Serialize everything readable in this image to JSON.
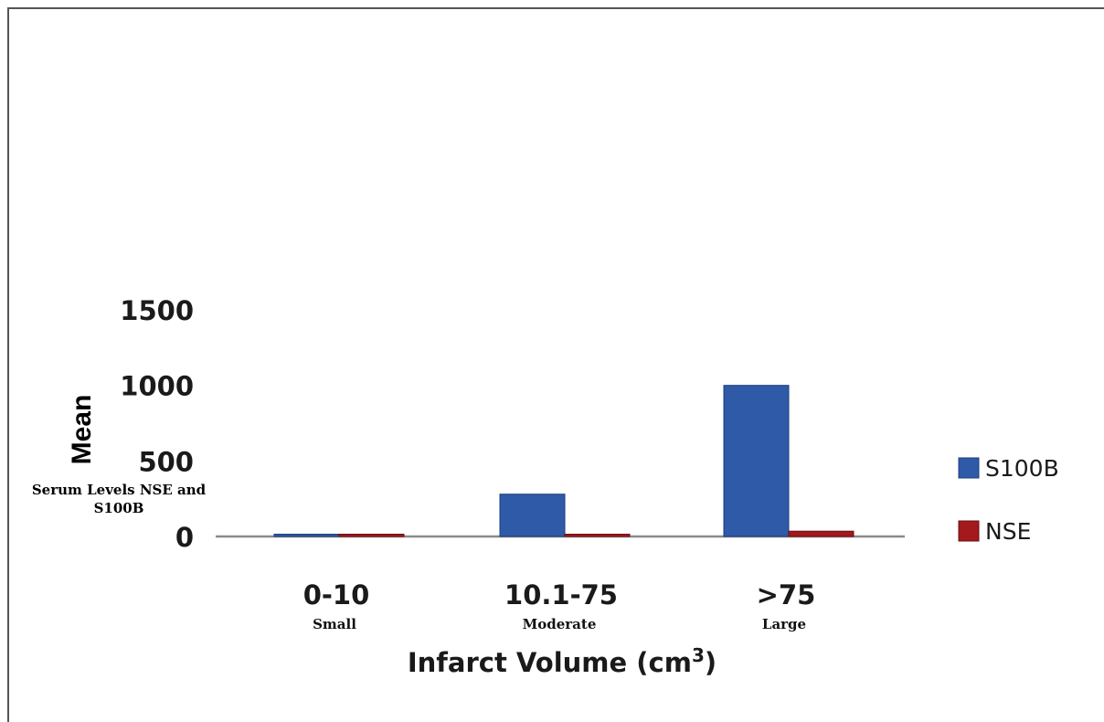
{
  "chart_data": {
    "type": "bar",
    "categories": [
      "0-10",
      "10.1-75",
      ">75"
    ],
    "category_sublabels": [
      "Small",
      "Moderate",
      "Large"
    ],
    "series": [
      {
        "name": "S100B",
        "values": [
          15,
          280,
          1000
        ],
        "color": "#2e5aa8"
      },
      {
        "name": "NSE",
        "values": [
          15,
          15,
          35
        ],
        "color": "#a3191c"
      }
    ],
    "ylabel": "Mean",
    "ylabel_sub": [
      "Serum Levels NSE and",
      "S100B"
    ],
    "xlabel": "Infarct Volume  (cm",
    "xlabel_sup": "3",
    "xlabel_close": ")",
    "yticks": [
      "0",
      "500",
      "1000",
      "1500"
    ],
    "ylim": [
      0,
      1500
    ],
    "grid": false,
    "legend_position": "right"
  }
}
